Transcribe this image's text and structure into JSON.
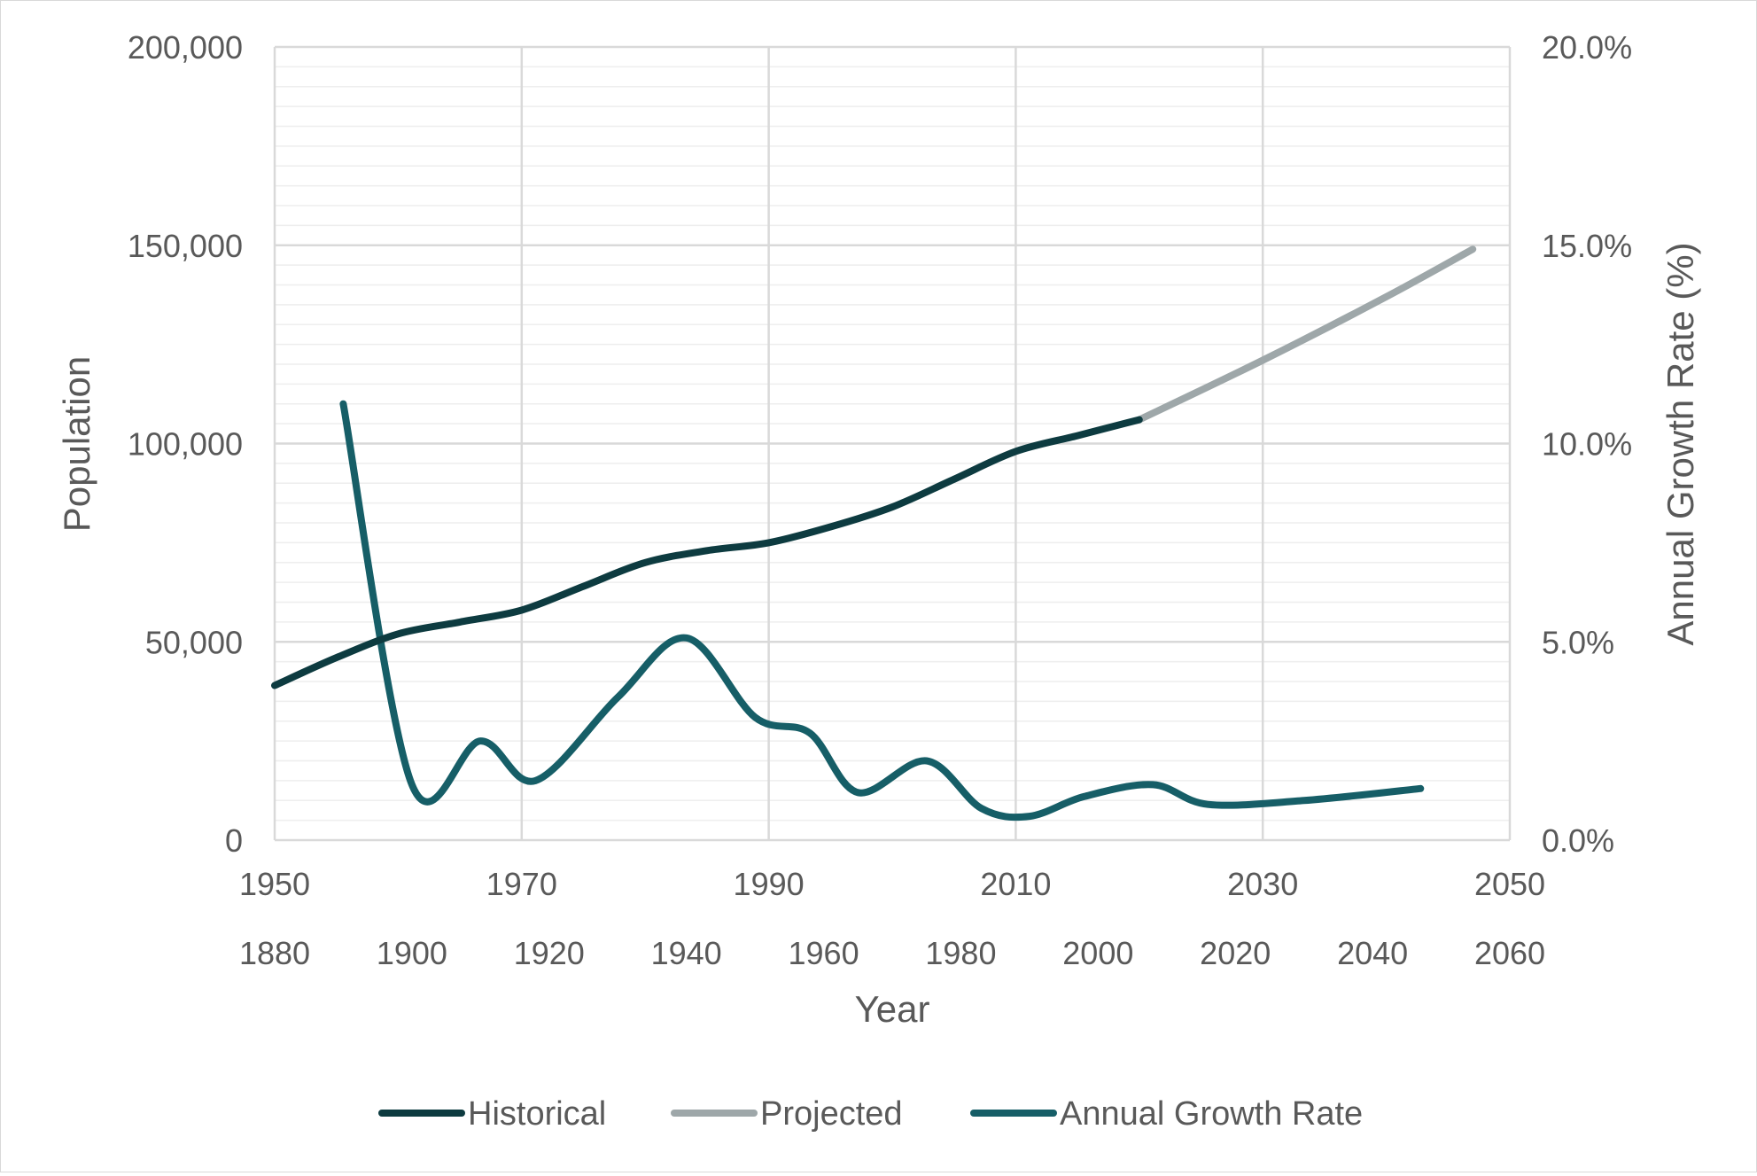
{
  "chart_data": {
    "type": "line",
    "title": "",
    "xlabel": "Year",
    "ylabel": "Population",
    "y2label": "Annual Growth Rate (%)",
    "grid": true,
    "legend_position": "bottom",
    "colors": {
      "historical": "#0d3b40",
      "projected": "#9ea7a9",
      "growth": "#165e67",
      "grid": "#d9d9d9",
      "minor_grid": "#eeeeee",
      "text": "#595959"
    },
    "x_primary": {
      "range": [
        1950,
        2050
      ],
      "ticks": [
        1950,
        1970,
        1990,
        2010,
        2030,
        2050
      ],
      "tick_labels": [
        "1950",
        "1970",
        "1990",
        "2010",
        "2030",
        "2050"
      ]
    },
    "x_secondary": {
      "range": [
        1880,
        2060
      ],
      "ticks": [
        1880,
        1900,
        1920,
        1940,
        1960,
        1980,
        2000,
        2020,
        2040,
        2060
      ],
      "tick_labels": [
        "1880",
        "1900",
        "1920",
        "1940",
        "1960",
        "1980",
        "2000",
        "2020",
        "2040",
        "2060"
      ]
    },
    "y_primary": {
      "range": [
        0,
        200000
      ],
      "ticks": [
        0,
        50000,
        100000,
        150000,
        200000
      ],
      "tick_labels": [
        "0",
        "50,000",
        "100,000",
        "150,000",
        "200,000"
      ],
      "minor_step": 5000
    },
    "y_secondary": {
      "range": [
        0,
        20
      ],
      "ticks": [
        0,
        5,
        10,
        15,
        20
      ],
      "tick_labels": [
        "0.0%",
        "5.0%",
        "10.0%",
        "15.0%",
        "20.0%"
      ]
    },
    "series": [
      {
        "name": "Historical",
        "axis": "primary",
        "x": [
          1950,
          1955,
          1960,
          1965,
          1970,
          1975,
          1980,
          1985,
          1990,
          1995,
          2000,
          2005,
          2010,
          2015,
          2020
        ],
        "values": [
          39000,
          46000,
          52000,
          55000,
          58000,
          64000,
          70000,
          73000,
          75000,
          79000,
          84000,
          91000,
          98000,
          102000,
          106000
        ]
      },
      {
        "name": "Projected",
        "axis": "primary",
        "x": [
          2020,
          2030,
          2040,
          2047
        ],
        "values": [
          106000,
          121000,
          137000,
          149000
        ]
      },
      {
        "name": "Annual Growth Rate",
        "axis": "secondary",
        "x": [
          1890,
          1900,
          1910,
          1918,
          1930,
          1940,
          1950,
          1958,
          1965,
          1975,
          1983,
          1990,
          1998,
          2008,
          2016,
          2030,
          2047
        ],
        "values": [
          11.0,
          1.4,
          2.5,
          1.5,
          3.6,
          5.1,
          3.1,
          2.7,
          1.2,
          2.0,
          0.8,
          0.6,
          1.1,
          1.4,
          0.9,
          1.0,
          1.3
        ]
      }
    ],
    "legend": [
      "Historical",
      "Projected",
      "Annual Growth Rate"
    ]
  }
}
